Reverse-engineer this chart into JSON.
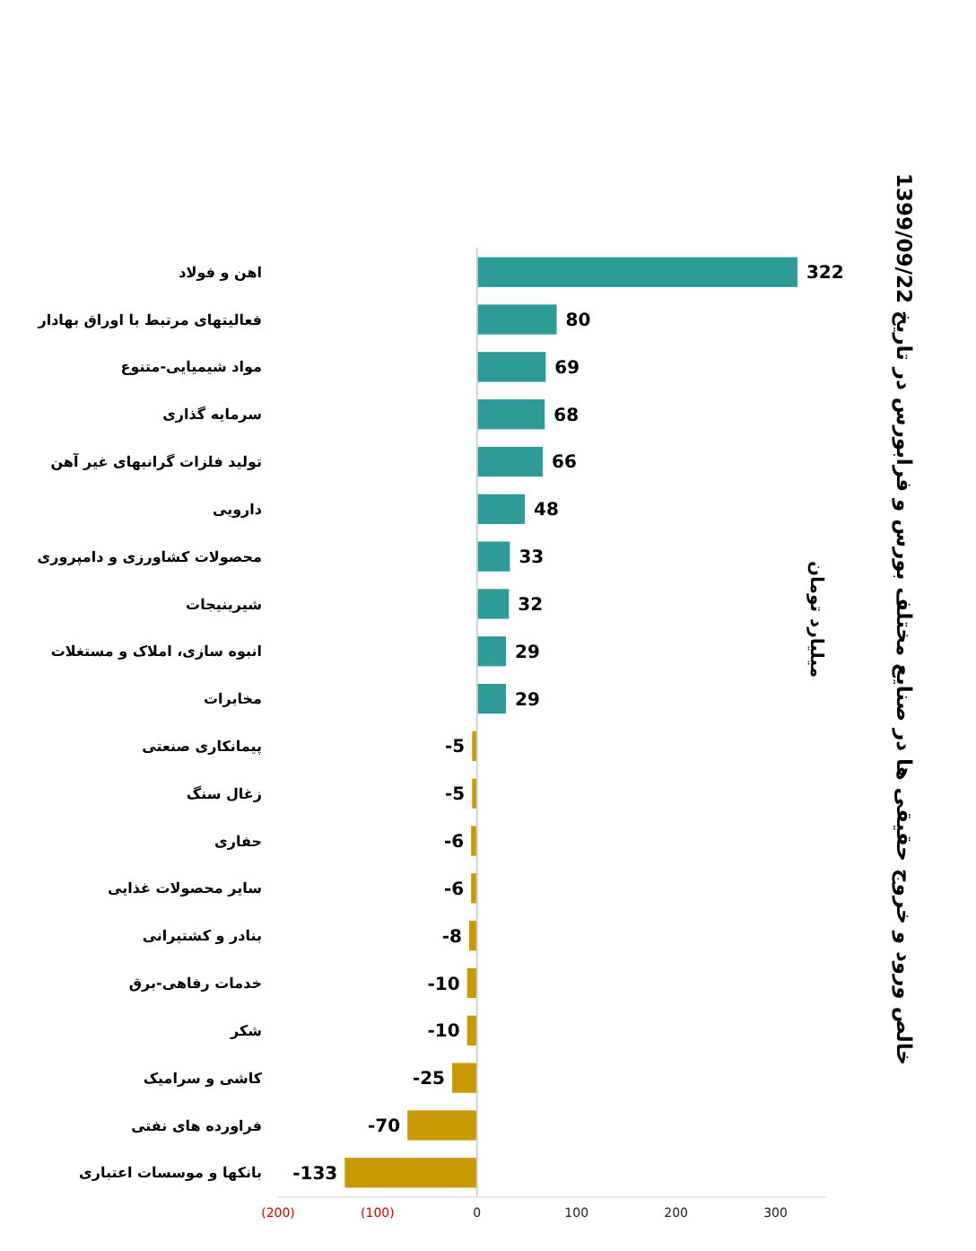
{
  "chart_data": {
    "type": "bar",
    "orientation": "horizontal",
    "title": "خالص ورود و خروج حقیقی ها در صنایع مختلف  بورس و فرابورس در تاریخ 1399/09/22",
    "ylabel": "میلیارد تومان",
    "categories": [
      "اهن و فولاد",
      "فعالیتهای مرتبط با اوراق بهادار",
      "مواد شیمیایی-متنوع",
      "سرمایه گذاری",
      "تولید فلزات گرانبهای غیر آهن",
      "دارویی",
      "محصولات کشاورزی و دامپروری",
      "شیرینیجات",
      "انبوه سازی، املاک و مستغلات",
      "مخابرات",
      "پیمانکاری صنعتی",
      "زغال سنگ",
      "حفاری",
      "سایر محصولات غذایی",
      "بنادر و کشتیرانی",
      "خدمات رفاهی-برق",
      "شکر",
      "کاشی و سرامیک",
      "فراورده های نفتی",
      "بانکها و موسسات اعتباری"
    ],
    "values": [
      322,
      80,
      69,
      68,
      66,
      48,
      33,
      32,
      29,
      29,
      -5,
      -5,
      -6,
      -6,
      -8,
      -10,
      -10,
      -25,
      -70,
      -133
    ],
    "colors": [
      "#2e9b96",
      "#2e9b96",
      "#2e9b96",
      "#2e9b96",
      "#2e9b96",
      "#2e9b96",
      "#2e9b96",
      "#2e9b96",
      "#2e9b96",
      "#2e9b96",
      "#c99a06",
      "#c99a06",
      "#c99a06",
      "#c99a06",
      "#c99a06",
      "#c99a06",
      "#c99a06",
      "#c99a06",
      "#c99a06",
      "#c99a06"
    ],
    "xlim": [
      -200,
      350
    ],
    "xticks": [
      {
        "value": -200,
        "label": "(200)"
      },
      {
        "value": -100,
        "label": "(100)"
      },
      0,
      100,
      200,
      300
    ],
    "data_labels": true
  }
}
